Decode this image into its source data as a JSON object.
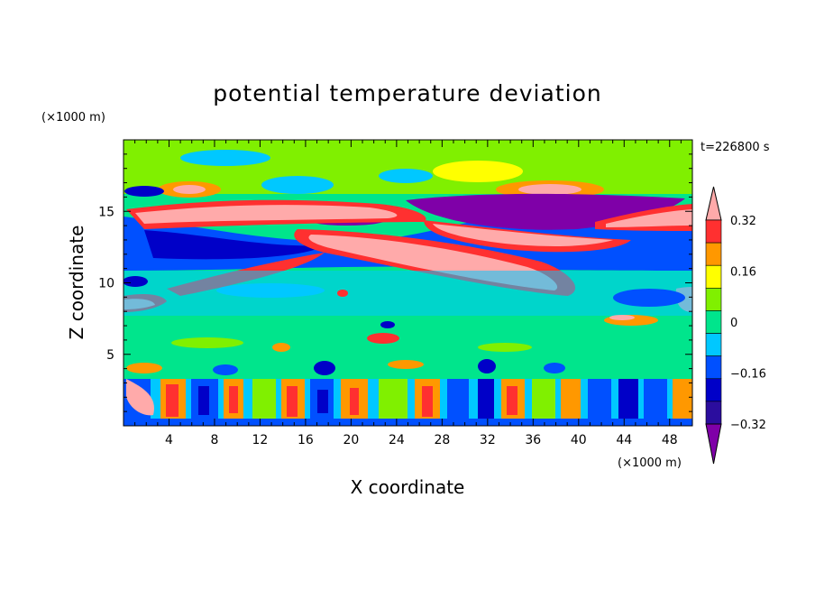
{
  "chart_data": {
    "type": "heatmap",
    "title": "potential temperature deviation",
    "xlabel": "X coordinate",
    "ylabel": "Z coordinate",
    "x_unit": "(×1000 m)",
    "y_unit": "(×1000 m)",
    "time_label": "t=226800 s",
    "xlim": [
      0,
      50
    ],
    "ylim": [
      0,
      20
    ],
    "x_ticks": [
      4,
      8,
      12,
      16,
      20,
      24,
      28,
      32,
      36,
      40,
      44,
      48
    ],
    "y_ticks": [
      5,
      10,
      15
    ],
    "colorbar": {
      "levels": [
        -0.4,
        -0.32,
        -0.24,
        -0.16,
        -0.08,
        0,
        0.08,
        0.16,
        0.24,
        0.32,
        0.4
      ],
      "tick_values": [
        0.32,
        0.16,
        0,
        -0.16,
        -0.32
      ],
      "tick_labels": [
        "0.32",
        "0.16",
        "0",
        "−0.16",
        "−0.32"
      ],
      "colors": [
        "#7f00a8",
        "#2b0d9e",
        "#0000c8",
        "#0050ff",
        "#00c8ff",
        "#00e58c",
        "#80f000",
        "#ffff00",
        "#ff9800",
        "#ff3030",
        "#ffaaaa"
      ],
      "extend": "both"
    },
    "bands": [
      {
        "z_range": [
          0,
          4
        ],
        "description": "vertical convective plumes alternating orange/red and blue/cyan"
      },
      {
        "z_range": [
          4,
          9
        ],
        "description": "mostly green/cyan with scattered small anomalies"
      },
      {
        "z_range": [
          9,
          17
        ],
        "description": "tilted warm (pink/red) streaks between cold (blue/purple) layers"
      },
      {
        "z_range": [
          17,
          20
        ],
        "description": "mostly green/yellow"
      }
    ]
  }
}
